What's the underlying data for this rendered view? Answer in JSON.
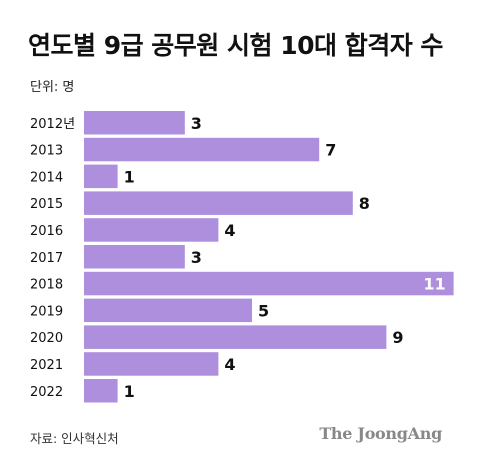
{
  "title": "연도별 9급 공무원 시험 10대 합격자 수",
  "unit_label": "단위: 명",
  "source": "자료: 인사혁신처",
  "brand": "The JoongAng",
  "colors": {
    "bar": "#ad8fdd",
    "text": "#111111",
    "label_inside": "#ffffff"
  },
  "chart_data": {
    "type": "bar",
    "orientation": "horizontal",
    "categories": [
      "2012년",
      "2013",
      "2014",
      "2015",
      "2016",
      "2017",
      "2018",
      "2019",
      "2020",
      "2021",
      "2022"
    ],
    "values": [
      3,
      7,
      1,
      8,
      4,
      3,
      11,
      5,
      9,
      4,
      1
    ],
    "title": "연도별 9급 공무원 시험 10대 합격자 수",
    "xlabel": "",
    "ylabel": "",
    "xlim": [
      0,
      11
    ],
    "grid": false,
    "legend": "none"
  }
}
